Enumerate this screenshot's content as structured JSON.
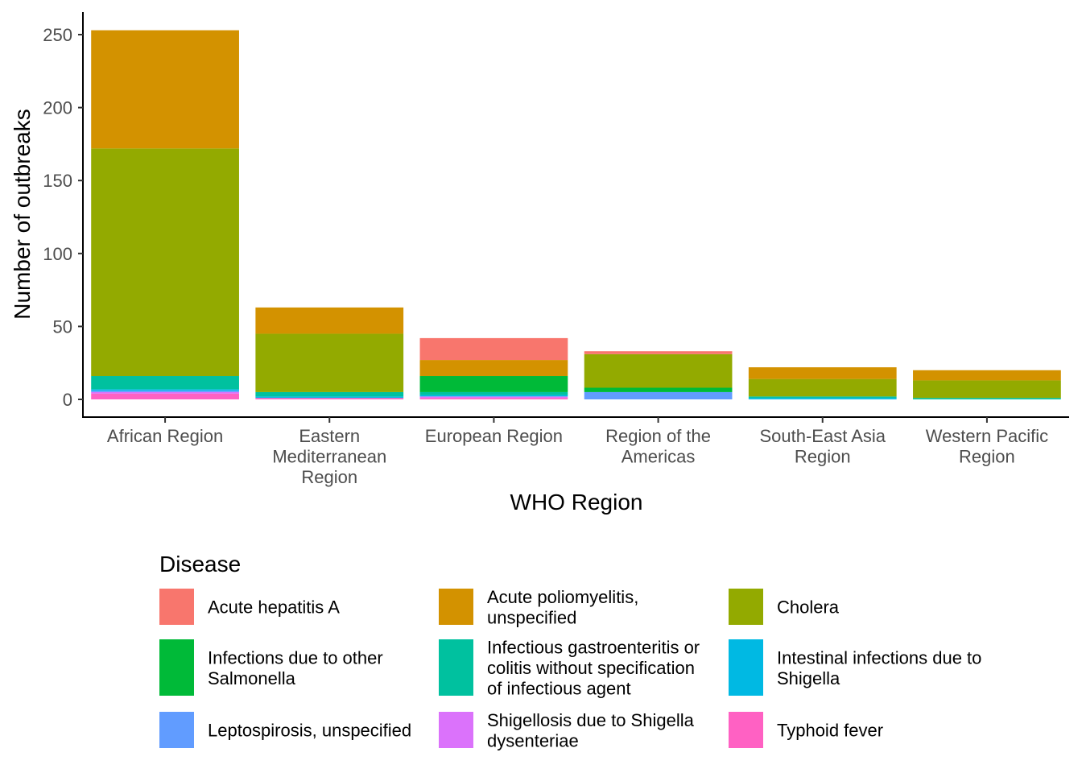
{
  "chart_data": {
    "type": "bar",
    "stacked": true,
    "title": "",
    "xlabel": "WHO Region",
    "ylabel": "Number of outbreaks",
    "ylim": [
      0,
      262
    ],
    "yticks": [
      0,
      50,
      100,
      150,
      200,
      250
    ],
    "grid": false,
    "categories": [
      [
        "African Region"
      ],
      [
        "Eastern",
        "Mediterranean",
        "Region"
      ],
      [
        "European Region"
      ],
      [
        "Region of the",
        "Americas"
      ],
      [
        "South-East Asia",
        "Region"
      ],
      [
        "Western Pacific",
        "Region"
      ]
    ],
    "legend": {
      "title": "Disease",
      "position": "bottom"
    },
    "series": [
      {
        "name": "Acute hepatitis A",
        "label_lines": [
          "Acute hepatitis A"
        ],
        "color": "#F8766D",
        "values": [
          0,
          0,
          15,
          2,
          0,
          0
        ]
      },
      {
        "name": "Acute poliomyelitis, unspecified",
        "label_lines": [
          "Acute poliomyelitis,",
          "unspecified"
        ],
        "color": "#D39200",
        "values": [
          81,
          18,
          11,
          0,
          8,
          7
        ]
      },
      {
        "name": "Cholera",
        "label_lines": [
          "Cholera"
        ],
        "color": "#93AA00",
        "values": [
          156,
          40,
          0,
          23,
          12,
          12
        ]
      },
      {
        "name": "Infections due to other Salmonella",
        "label_lines": [
          "Infections due to other",
          "Salmonella"
        ],
        "color": "#00BA38",
        "values": [
          0,
          0,
          11,
          3,
          0,
          0
        ]
      },
      {
        "name": "Infectious gastroenteritis or colitis without specification of infectious agent",
        "label_lines": [
          "Infectious gastroenteritis or",
          "colitis without specification",
          "of infectious agent"
        ],
        "color": "#00C19F",
        "values": [
          9,
          3,
          2,
          0,
          1,
          1
        ]
      },
      {
        "name": "Intestinal infections due to Shigella",
        "label_lines": [
          "Intestinal infections due to",
          "Shigella"
        ],
        "color": "#00B9E3",
        "values": [
          1,
          1,
          1,
          0,
          1,
          0
        ]
      },
      {
        "name": "Leptospirosis, unspecified",
        "label_lines": [
          "Leptospirosis, unspecified"
        ],
        "color": "#619CFF",
        "values": [
          1,
          0,
          0,
          5,
          0,
          0
        ]
      },
      {
        "name": "Shigellosis due to Shigella dysenteriae",
        "label_lines": [
          "Shigellosis due to Shigella",
          "dysenteriae"
        ],
        "color": "#DB72FB",
        "values": [
          1,
          0,
          1,
          0,
          0,
          0
        ]
      },
      {
        "name": "Typhoid fever",
        "label_lines": [
          "Typhoid fever"
        ],
        "color": "#FF61C3",
        "values": [
          4,
          1,
          1,
          0,
          0,
          0
        ]
      }
    ]
  }
}
